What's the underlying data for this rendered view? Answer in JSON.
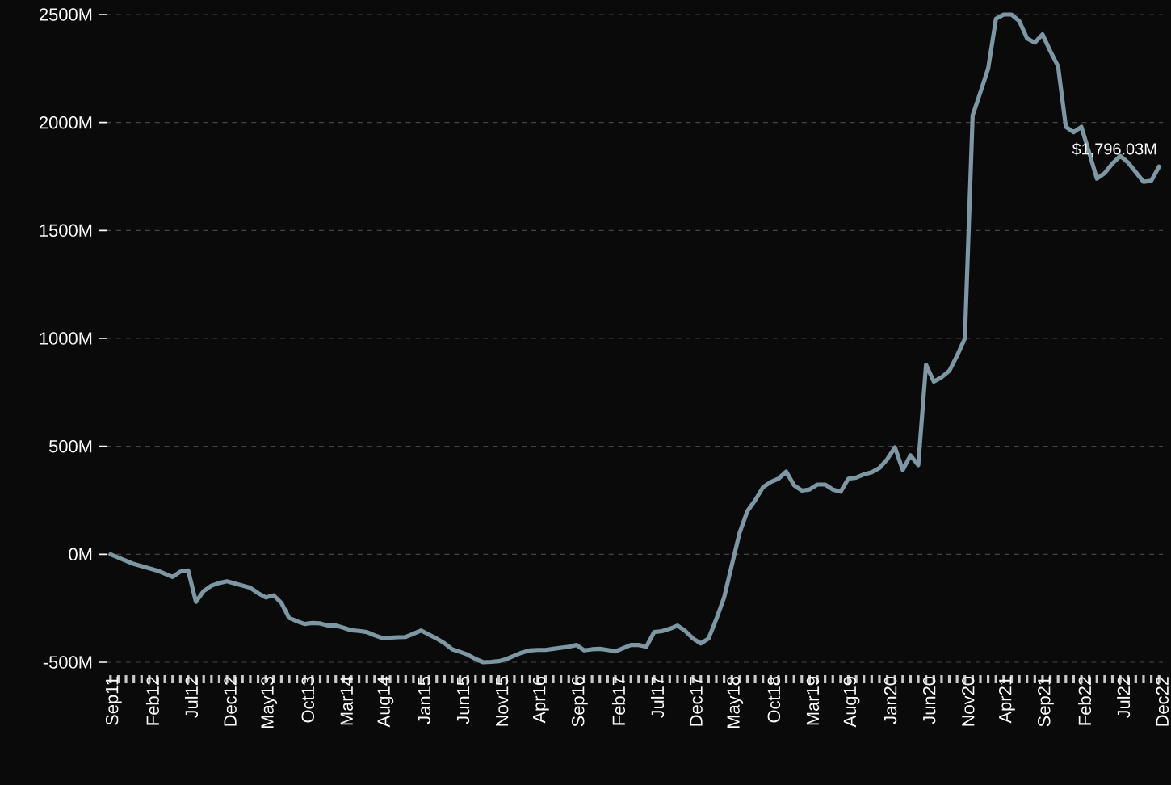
{
  "chart_data": {
    "type": "line",
    "color": "#7d97a5",
    "grid": "y",
    "categories": [
      "Sep11",
      null,
      null,
      null,
      null,
      "Feb12",
      null,
      null,
      null,
      null,
      "Jul12",
      null,
      null,
      null,
      null,
      "Dec12",
      null,
      null,
      null,
      null,
      "May13",
      null,
      null,
      null,
      null,
      "Oct13",
      null,
      null,
      null,
      null,
      "Mar14",
      null,
      null,
      null,
      null,
      "Aug14",
      null,
      null,
      null,
      null,
      "Jan15",
      null,
      null,
      null,
      null,
      "Jun15",
      null,
      null,
      null,
      null,
      "Nov15",
      null,
      null,
      null,
      null,
      "Apr16",
      null,
      null,
      null,
      null,
      "Sep16",
      null,
      null,
      null,
      null,
      "Feb17",
      null,
      null,
      null,
      null,
      "Jul17",
      null,
      null,
      null,
      null,
      "Dec17",
      null,
      null,
      null,
      null,
      "May18",
      null,
      null,
      null,
      null,
      "Oct18",
      null,
      null,
      null,
      null,
      "Mar19",
      null,
      null,
      null,
      null,
      "Aug19",
      null,
      null,
      null,
      null,
      "Jan20",
      null,
      null,
      null,
      null,
      "Jun20",
      null,
      null,
      null,
      null,
      "Nov20",
      null,
      null,
      null,
      null,
      "Apr21",
      null,
      null,
      null,
      null,
      "Sep21",
      null,
      null,
      null,
      null,
      "Feb22",
      null,
      null,
      null,
      null,
      "Jul22",
      null,
      null,
      null,
      null,
      "Dec22"
    ],
    "values": [
      0,
      -15,
      -30,
      -45,
      -55,
      -65,
      -75,
      -90,
      -105,
      -80,
      -75,
      -220,
      -170,
      -145,
      -133,
      -125,
      -135,
      -145,
      -155,
      -180,
      -200,
      -190,
      -225,
      -295,
      -310,
      -323,
      -318,
      -320,
      -330,
      -330,
      -340,
      -352,
      -355,
      -360,
      -375,
      -388,
      -386,
      -384,
      -383,
      -368,
      -353,
      -372,
      -390,
      -412,
      -440,
      -452,
      -465,
      -485,
      -500,
      -498,
      -495,
      -485,
      -470,
      -455,
      -445,
      -443,
      -443,
      -438,
      -433,
      -428,
      -420,
      -445,
      -440,
      -438,
      -443,
      -450,
      -435,
      -420,
      -420,
      -428,
      -360,
      -356,
      -345,
      -330,
      -355,
      -390,
      -413,
      -390,
      -300,
      -200,
      -50,
      100,
      200,
      250,
      310,
      335,
      350,
      383,
      320,
      295,
      300,
      323,
      323,
      300,
      290,
      350,
      355,
      370,
      380,
      400,
      440,
      495,
      390,
      458,
      413,
      878,
      800,
      820,
      850,
      920,
      1000,
      2033,
      2140,
      2250,
      2480,
      2500,
      2500,
      2470,
      2390,
      2370,
      2408,
      2330,
      2260,
      1980,
      1955,
      1980,
      1860,
      1740,
      1765,
      1810,
      1845,
      1815,
      1770,
      1725,
      1730,
      1796.03
    ],
    "ylim": [
      -500,
      2500
    ],
    "yticks": [
      {
        "value": -500,
        "label": "-500M"
      },
      {
        "value": 0,
        "label": "0M"
      },
      {
        "value": 500,
        "label": "500M"
      },
      {
        "value": 1000,
        "label": "1000M"
      },
      {
        "value": 1500,
        "label": "1500M"
      },
      {
        "value": 2000,
        "label": "2000M"
      },
      {
        "value": 2500,
        "label": "2500M"
      }
    ],
    "annotations": [
      {
        "text": "$1,796.03M",
        "x": "Dec22",
        "y": 1796.03
      }
    ]
  }
}
